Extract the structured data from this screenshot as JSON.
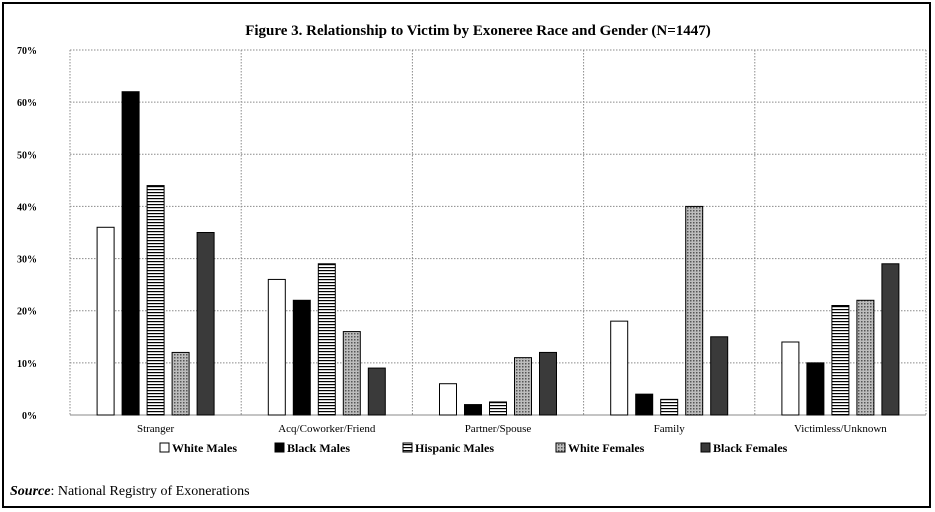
{
  "chart_data": {
    "type": "bar",
    "title": "Figure 3. Relationship to Victim by Exoneree Race and Gender (N=1447)",
    "xlabel": "",
    "ylabel": "",
    "ylim": [
      0,
      70
    ],
    "yticks": [
      "0%",
      "10%",
      "20%",
      "30%",
      "40%",
      "50%",
      "60%",
      "70%"
    ],
    "grid": true,
    "legend_position": "bottom",
    "categories": [
      "Stranger",
      "Acq/Coworker/Friend",
      "Partner/Spouse",
      "Family",
      "Victimless/Unknown"
    ],
    "series": [
      {
        "name": "White Males",
        "values": [
          36,
          26,
          6,
          18,
          14
        ],
        "pattern": "white"
      },
      {
        "name": "Black Males",
        "values": [
          62,
          22,
          2,
          4,
          10
        ],
        "pattern": "black"
      },
      {
        "name": "Hispanic Males",
        "values": [
          44,
          29,
          2.5,
          3,
          21
        ],
        "pattern": "hlines"
      },
      {
        "name": "White Females",
        "values": [
          12,
          16,
          11,
          40,
          22
        ],
        "pattern": "grid"
      },
      {
        "name": "Black Females",
        "values": [
          35,
          9,
          12,
          15,
          29
        ],
        "pattern": "darkgray"
      }
    ]
  },
  "source": {
    "label": "Source",
    "text": ": National Registry of Exonerations"
  }
}
